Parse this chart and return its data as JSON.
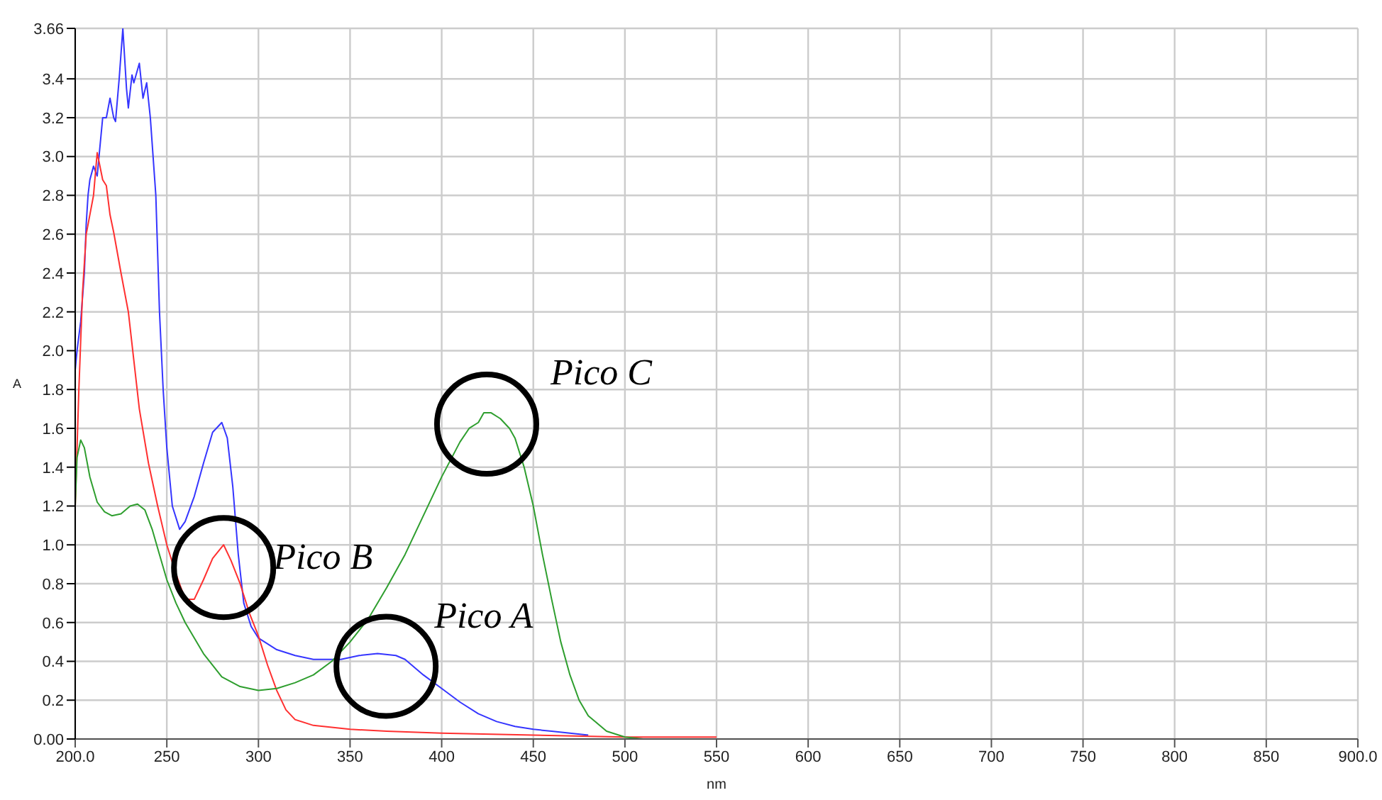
{
  "chart_data": {
    "type": "line",
    "xlabel": "nm",
    "ylabel": "A",
    "xlim": [
      200,
      900
    ],
    "xticks": [
      {
        "value": 200,
        "label": "200.0"
      },
      250,
      300,
      350,
      400,
      450,
      500,
      550,
      600,
      650,
      700,
      750,
      800,
      850,
      {
        "value": 900,
        "label": "900.0"
      }
    ],
    "ylim": [
      0,
      3.66
    ],
    "yticks": [
      {
        "value": 0,
        "label": "0.00"
      },
      0.2,
      0.4,
      0.6,
      0.8,
      {
        "value": 1,
        "label": "1.0"
      },
      1.2,
      1.4,
      1.6,
      1.8,
      {
        "value": 2,
        "label": "2.0"
      },
      2.2,
      2.4,
      2.6,
      2.8,
      {
        "value": 3,
        "label": "3.0"
      },
      3.2,
      3.4,
      3.66
    ],
    "grid": true,
    "marker": "none",
    "line_style": "solid",
    "legend": false,
    "annotations": [
      {
        "text": "Pico A",
        "x": 365,
        "y": 0.44
      },
      {
        "text": "Pico B",
        "x": 281,
        "y": 1.0
      },
      {
        "text": "Pico C",
        "x": 423,
        "y": 1.68
      }
    ],
    "series": [
      {
        "color": "#3535ff",
        "x": [
          200,
          201,
          203,
          205,
          206,
          207,
          208,
          210,
          212,
          213,
          215,
          217,
          219,
          221,
          222,
          224,
          226,
          228,
          229,
          231,
          232,
          235,
          237,
          239,
          241,
          244,
          246,
          248,
          250,
          253,
          257,
          260,
          265,
          270,
          275,
          280,
          283,
          286,
          289,
          292,
          296,
          300,
          310,
          320,
          330,
          345,
          355,
          365,
          375,
          380,
          390,
          400,
          410,
          420,
          430,
          440,
          450,
          460,
          470,
          480
        ],
        "values": [
          1.9,
          2.0,
          2.15,
          2.4,
          2.65,
          2.8,
          2.88,
          2.95,
          2.9,
          3.0,
          3.2,
          3.2,
          3.3,
          3.2,
          3.18,
          3.4,
          3.66,
          3.35,
          3.25,
          3.42,
          3.38,
          3.48,
          3.3,
          3.38,
          3.2,
          2.8,
          2.2,
          1.8,
          1.5,
          1.2,
          1.08,
          1.12,
          1.25,
          1.42,
          1.58,
          1.63,
          1.55,
          1.3,
          0.95,
          0.7,
          0.58,
          0.52,
          0.46,
          0.43,
          0.41,
          0.41,
          0.43,
          0.44,
          0.43,
          0.41,
          0.33,
          0.26,
          0.19,
          0.13,
          0.09,
          0.065,
          0.05,
          0.04,
          0.03,
          0.02
        ]
      },
      {
        "color": "#ff3030",
        "x": [
          200,
          202,
          204,
          206,
          208,
          210,
          212,
          215,
          217,
          219,
          221,
          225,
          229,
          235,
          240,
          245,
          250,
          255,
          260,
          265,
          270,
          275,
          281,
          285,
          290,
          295,
          300,
          305,
          310,
          315,
          320,
          330,
          340,
          350,
          370,
          400,
          450,
          500,
          550
        ],
        "values": [
          1.2,
          1.8,
          2.3,
          2.6,
          2.7,
          2.8,
          3.02,
          2.88,
          2.85,
          2.7,
          2.61,
          2.4,
          2.2,
          1.7,
          1.42,
          1.2,
          1.0,
          0.85,
          0.72,
          0.72,
          0.82,
          0.93,
          1.0,
          0.92,
          0.8,
          0.65,
          0.53,
          0.38,
          0.25,
          0.15,
          0.1,
          0.07,
          0.06,
          0.05,
          0.04,
          0.03,
          0.02,
          0.01,
          0.01
        ]
      },
      {
        "color": "#2e9e2e",
        "x": [
          200,
          201,
          203,
          205,
          208,
          212,
          216,
          220,
          225,
          230,
          234,
          238,
          242,
          246,
          250,
          255,
          260,
          270,
          280,
          290,
          300,
          310,
          320,
          330,
          340,
          350,
          360,
          370,
          380,
          390,
          400,
          410,
          415,
          420,
          423,
          427,
          432,
          437,
          440,
          445,
          450,
          455,
          460,
          465,
          470,
          475,
          480,
          490,
          500,
          510,
          900
        ],
        "values": [
          1.2,
          1.45,
          1.54,
          1.5,
          1.35,
          1.22,
          1.17,
          1.15,
          1.16,
          1.2,
          1.21,
          1.18,
          1.08,
          0.95,
          0.82,
          0.7,
          0.6,
          0.44,
          0.32,
          0.27,
          0.25,
          0.26,
          0.29,
          0.33,
          0.4,
          0.5,
          0.62,
          0.78,
          0.95,
          1.15,
          1.35,
          1.53,
          1.6,
          1.63,
          1.68,
          1.68,
          1.65,
          1.6,
          1.55,
          1.4,
          1.2,
          0.95,
          0.72,
          0.5,
          0.33,
          0.2,
          0.12,
          0.04,
          0.01,
          0,
          0
        ]
      }
    ]
  }
}
